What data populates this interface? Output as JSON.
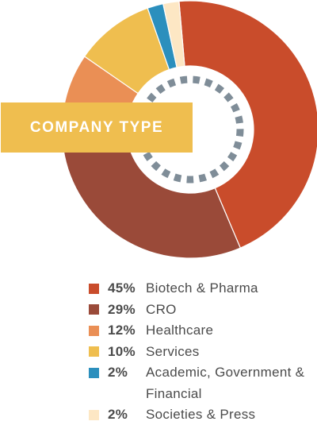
{
  "banner": {
    "label": "COMPANY TYPE"
  },
  "colors": {
    "ring_dashes": "#7f8d98",
    "banner": "#efbe4f",
    "legend_text": "#4b4b4b"
  },
  "chart_data": {
    "type": "pie",
    "variant": "donut",
    "title": "",
    "legend_placement": "bottom",
    "categories": [
      "Biotech & Pharma",
      "CRO",
      "Healthcare",
      "Services",
      "Academic, Government & Financial",
      "Societies & Press"
    ],
    "values": [
      45,
      29,
      12,
      10,
      2,
      2
    ],
    "value_labels": [
      "45%",
      "29%",
      "12%",
      "10%",
      "2%",
      "2%"
    ],
    "colors": [
      "#c94c2b",
      "#9a4a39",
      "#ea8f55",
      "#efbe4f",
      "#2b8fbd",
      "#fde7c4"
    ]
  }
}
